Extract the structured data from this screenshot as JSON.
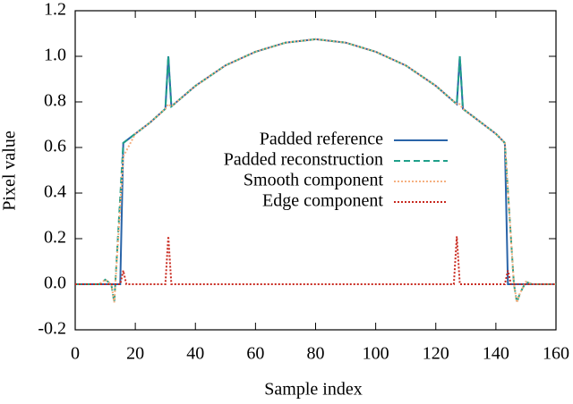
{
  "chart_data": {
    "type": "line",
    "x_label": "Sample index",
    "y_label": "Pixel value",
    "xlim": [
      0,
      160
    ],
    "xticks": [
      0,
      20,
      40,
      60,
      80,
      100,
      120,
      140,
      160
    ],
    "ylim": [
      -0.2,
      1.2
    ],
    "yticks": [
      -0.2,
      {
        "value": 0,
        "label": "0.0"
      },
      0.2,
      0.4,
      0.6,
      0.8,
      {
        "value": 1,
        "label": "1.0"
      },
      1.2
    ],
    "legend": "center",
    "series": [
      {
        "name": "Padded reference",
        "color": "#2a64a8",
        "dash": "solid",
        "x": [
          0,
          15,
          16,
          20,
          25,
          30,
          31,
          32,
          40,
          50,
          60,
          70,
          80,
          90,
          100,
          110,
          120,
          127,
          128,
          129,
          135,
          140,
          143,
          144,
          160
        ],
        "values": [
          0,
          0,
          0.62,
          0.66,
          0.71,
          0.77,
          1.0,
          0.78,
          0.87,
          0.96,
          1.02,
          1.06,
          1.075,
          1.06,
          1.02,
          0.96,
          0.87,
          0.79,
          1.0,
          0.77,
          0.71,
          0.66,
          0.62,
          0,
          0
        ]
      },
      {
        "name": "Padded reconstruction",
        "color": "#1fa08a",
        "dash": "dashed",
        "x": [
          0,
          8,
          10,
          12,
          13,
          16,
          20,
          25,
          30,
          31,
          32,
          40,
          50,
          60,
          70,
          80,
          90,
          100,
          110,
          120,
          127,
          128,
          129,
          135,
          140,
          143,
          146,
          147,
          148,
          150,
          152,
          160
        ],
        "values": [
          0,
          0,
          0.02,
          0,
          -0.08,
          0.62,
          0.66,
          0.71,
          0.77,
          1.0,
          0.78,
          0.87,
          0.96,
          1.02,
          1.06,
          1.075,
          1.06,
          1.02,
          0.96,
          0.87,
          0.79,
          1.0,
          0.77,
          0.71,
          0.66,
          0.62,
          0,
          -0.08,
          -0.04,
          0.01,
          0,
          0
        ]
      },
      {
        "name": "Smooth component",
        "color": "#f5b080",
        "dash": "dotted",
        "x": [
          0,
          8,
          10,
          12,
          13,
          16,
          20,
          25,
          30,
          31,
          32,
          40,
          50,
          60,
          70,
          80,
          90,
          100,
          110,
          120,
          127,
          128,
          129,
          135,
          140,
          143,
          146,
          147,
          148,
          150,
          152,
          160
        ],
        "values": [
          0,
          0,
          0.02,
          0,
          -0.08,
          0.56,
          0.66,
          0.71,
          0.77,
          0.79,
          0.78,
          0.87,
          0.96,
          1.02,
          1.06,
          1.075,
          1.06,
          1.02,
          0.96,
          0.87,
          0.79,
          0.79,
          0.77,
          0.71,
          0.66,
          0.62,
          0,
          -0.08,
          -0.04,
          0.01,
          0,
          0
        ]
      },
      {
        "name": "Edge component",
        "color": "#c8281e",
        "dash": "dotted",
        "x": [
          0,
          15,
          16,
          17,
          30,
          31,
          32,
          126,
          127,
          128,
          143,
          144,
          145,
          160
        ],
        "values": [
          0,
          0,
          0.06,
          0,
          0,
          0.21,
          0,
          0,
          0.21,
          0,
          0,
          0.06,
          0,
          0
        ]
      }
    ]
  }
}
